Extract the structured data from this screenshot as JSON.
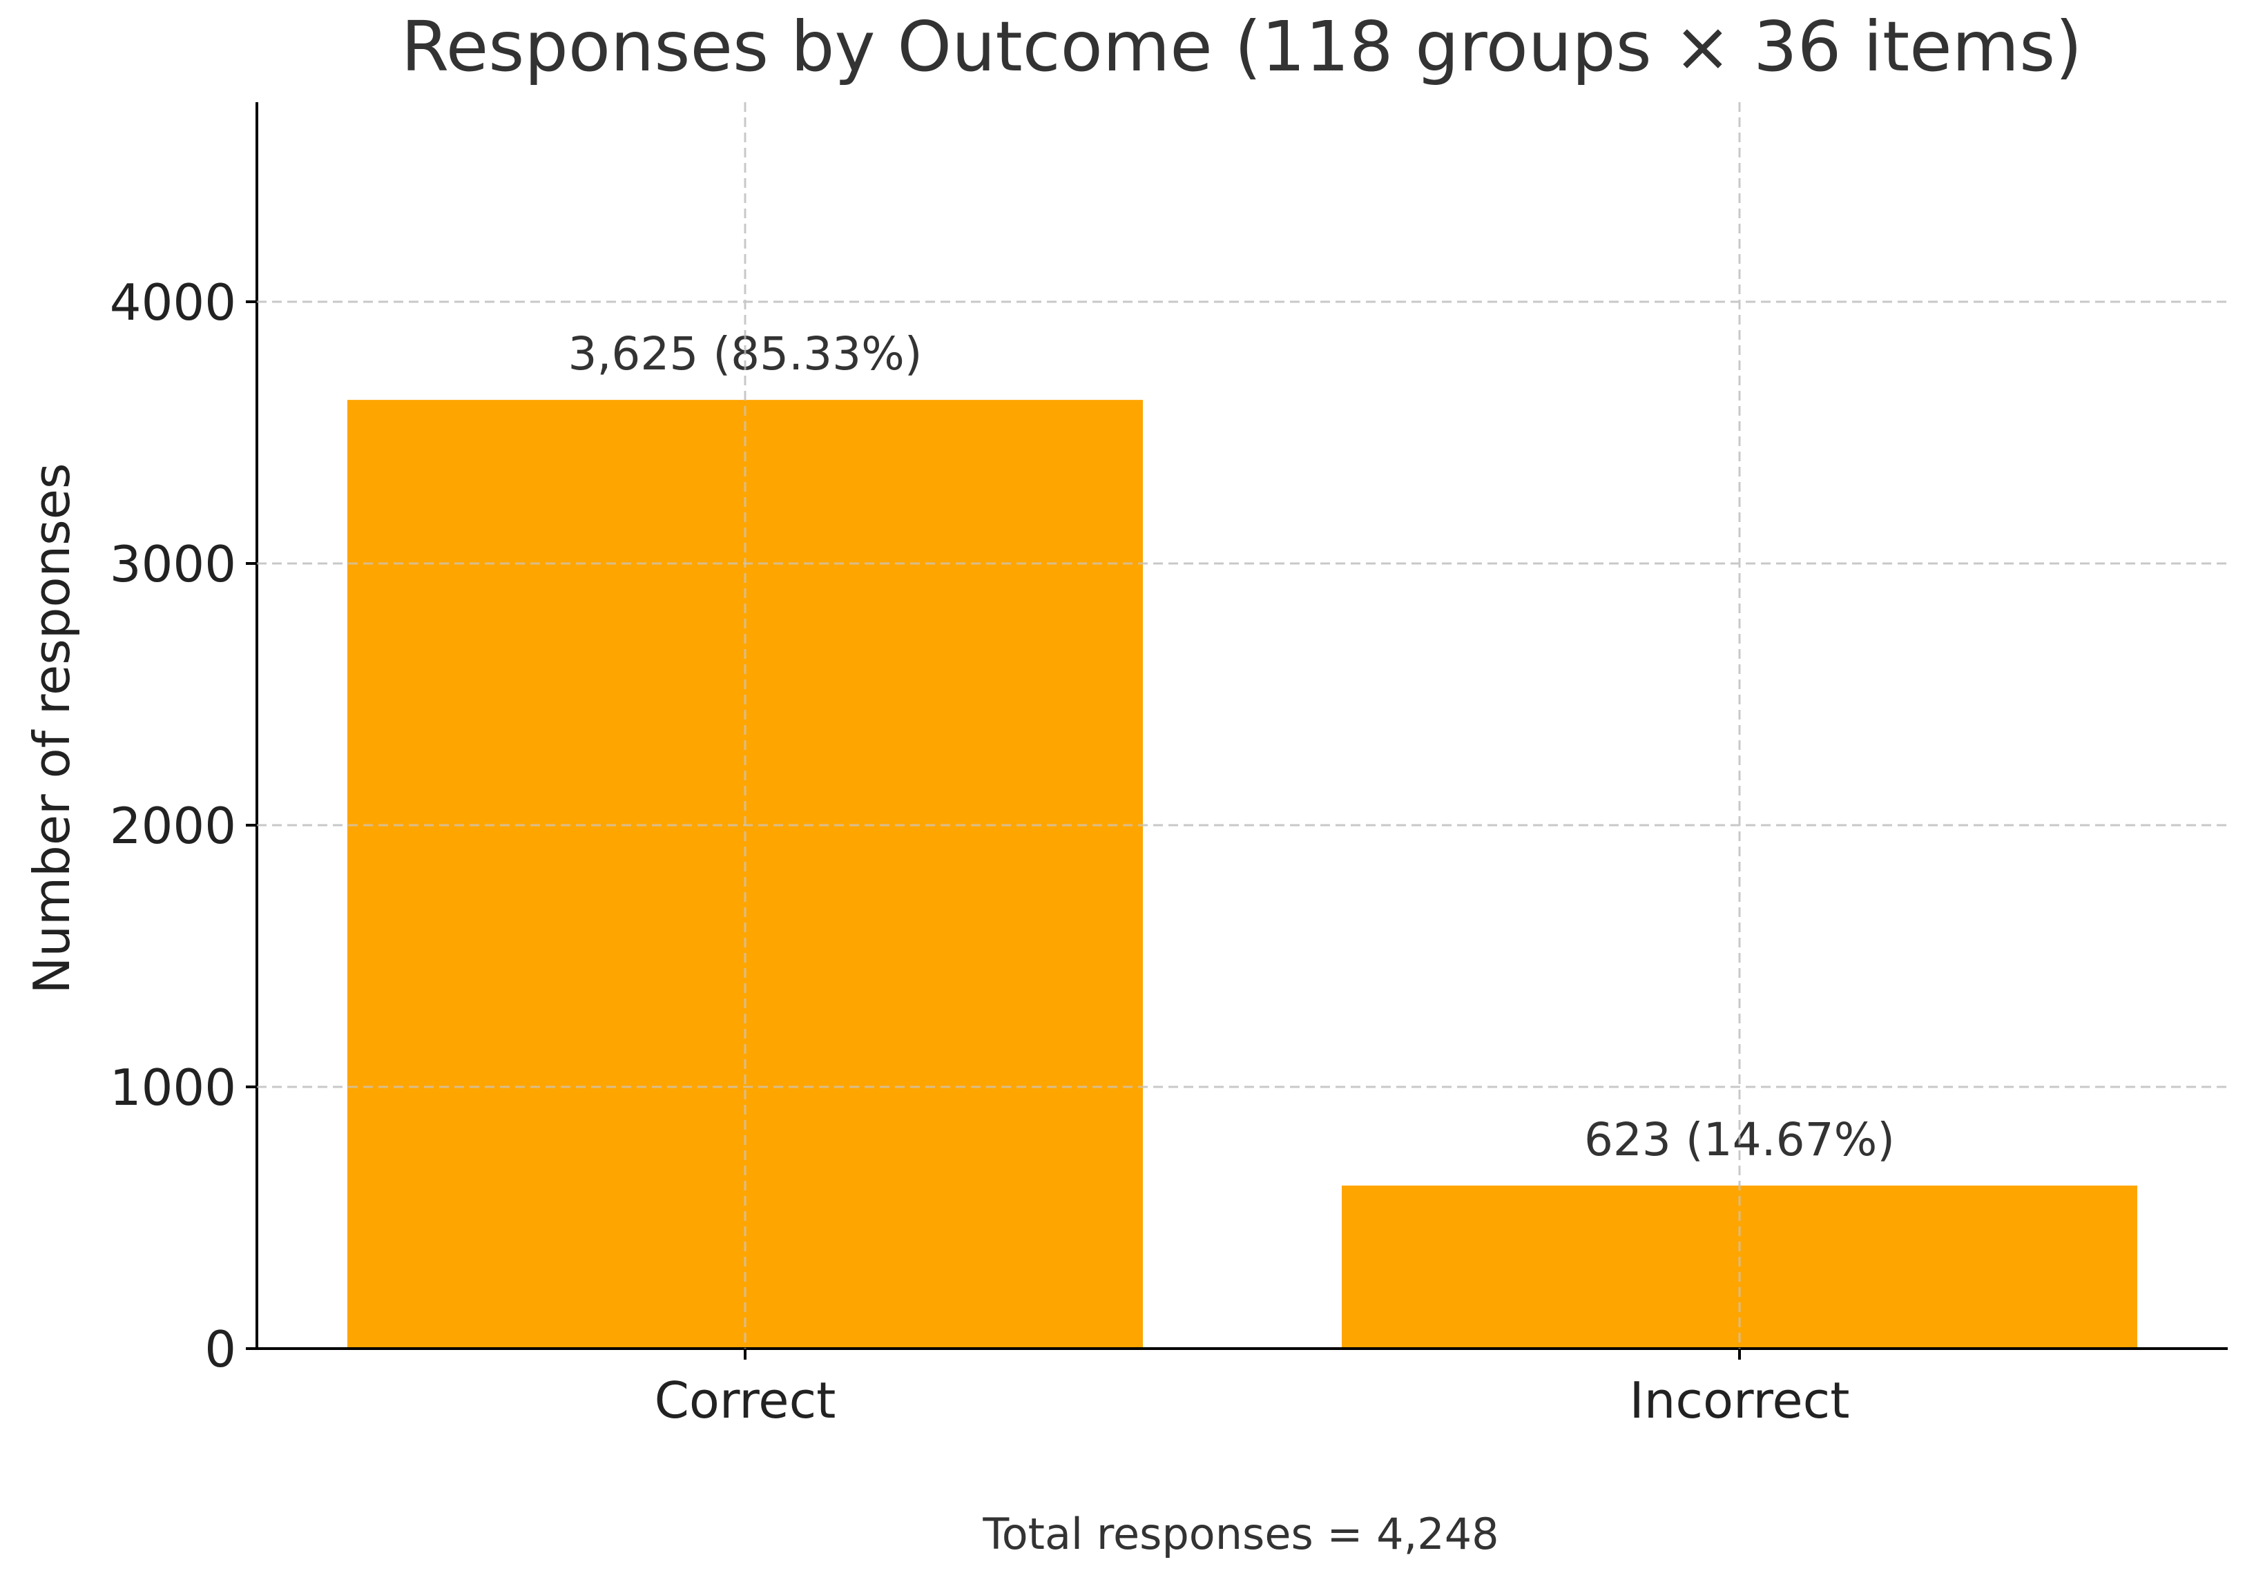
{
  "chart_data": {
    "type": "bar",
    "title": "Responses by Outcome (118 groups × 36 items)",
    "xlabel": "",
    "ylabel": "Number of responses",
    "categories": [
      "Correct",
      "Incorrect"
    ],
    "values": [
      3625,
      623
    ],
    "data_labels": [
      "3,625 (85.33%)",
      "623 (14.67%)"
    ],
    "ylim": [
      0,
      4760
    ],
    "yticks": [
      0,
      1000,
      2000,
      3000,
      4000
    ],
    "ytick_labels": [
      "0",
      "1000",
      "2000",
      "3000",
      "4000"
    ],
    "grid": true,
    "bar_color": "#FFA500",
    "footnote": "Total responses = 4,248"
  }
}
